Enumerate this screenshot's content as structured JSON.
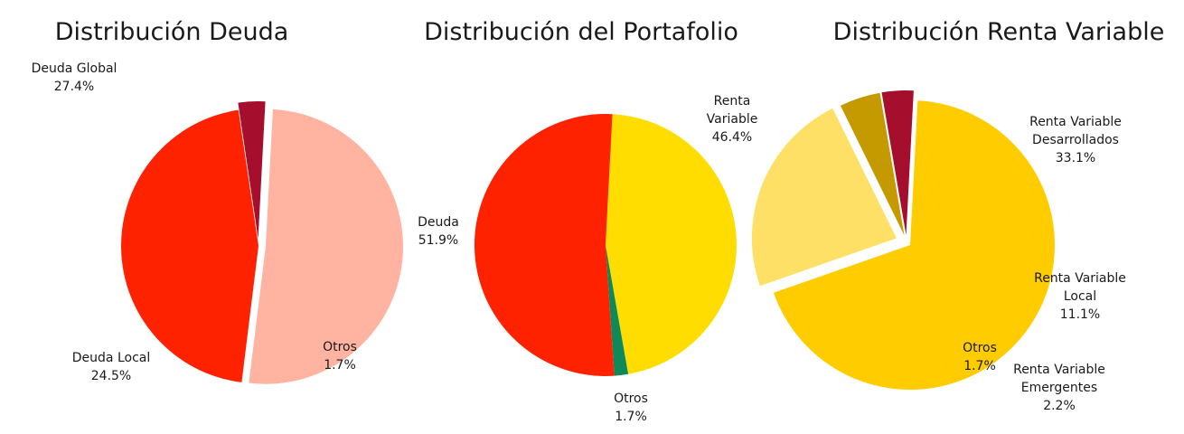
{
  "chart_data": [
    {
      "type": "pie",
      "title": "Distribución Deuda",
      "slices": [
        {
          "label": "Deuda Global",
          "value": 27.4,
          "value_label": "27.4%",
          "color": "#ffb3a0"
        },
        {
          "label": "Deuda Local",
          "value": 24.5,
          "value_label": "24.5%",
          "color": "#ff2200"
        },
        {
          "label": "Otros",
          "value": 1.7,
          "value_label": "1.7%",
          "color": "#a50f2d"
        }
      ]
    },
    {
      "type": "pie",
      "title": "Distribución del Portafolio",
      "slices": [
        {
          "label": "Renta Variable",
          "label_lines": [
            "Renta",
            "Variable"
          ],
          "value": 46.4,
          "value_label": "46.4%",
          "color": "#ffdd00"
        },
        {
          "label": "Otros",
          "value": 1.7,
          "value_label": "1.7%",
          "color": "#0e8a5a"
        },
        {
          "label": "Deuda",
          "value": 51.9,
          "value_label": "51.9%",
          "color": "#ff2200"
        }
      ]
    },
    {
      "type": "pie",
      "title": "Distribución Renta Variable",
      "slices": [
        {
          "label": "Renta Variable Desarrollados",
          "label_lines": [
            "Renta Variable",
            "Desarrollados"
          ],
          "value": 33.1,
          "value_label": "33.1%",
          "color": "#ffcc00"
        },
        {
          "label": "Renta Variable Local",
          "label_lines": [
            "Renta Variable",
            "Local"
          ],
          "value": 11.1,
          "value_label": "11.1%",
          "color": "#ffe066"
        },
        {
          "label": "Renta Variable Emergentes",
          "label_lines": [
            "Renta Variable",
            "Emergentes"
          ],
          "value": 2.2,
          "value_label": "2.2%",
          "color": "#c49a00"
        },
        {
          "label": "Otros",
          "value": 1.7,
          "value_label": "1.7%",
          "color": "#a50f2d"
        }
      ]
    }
  ]
}
